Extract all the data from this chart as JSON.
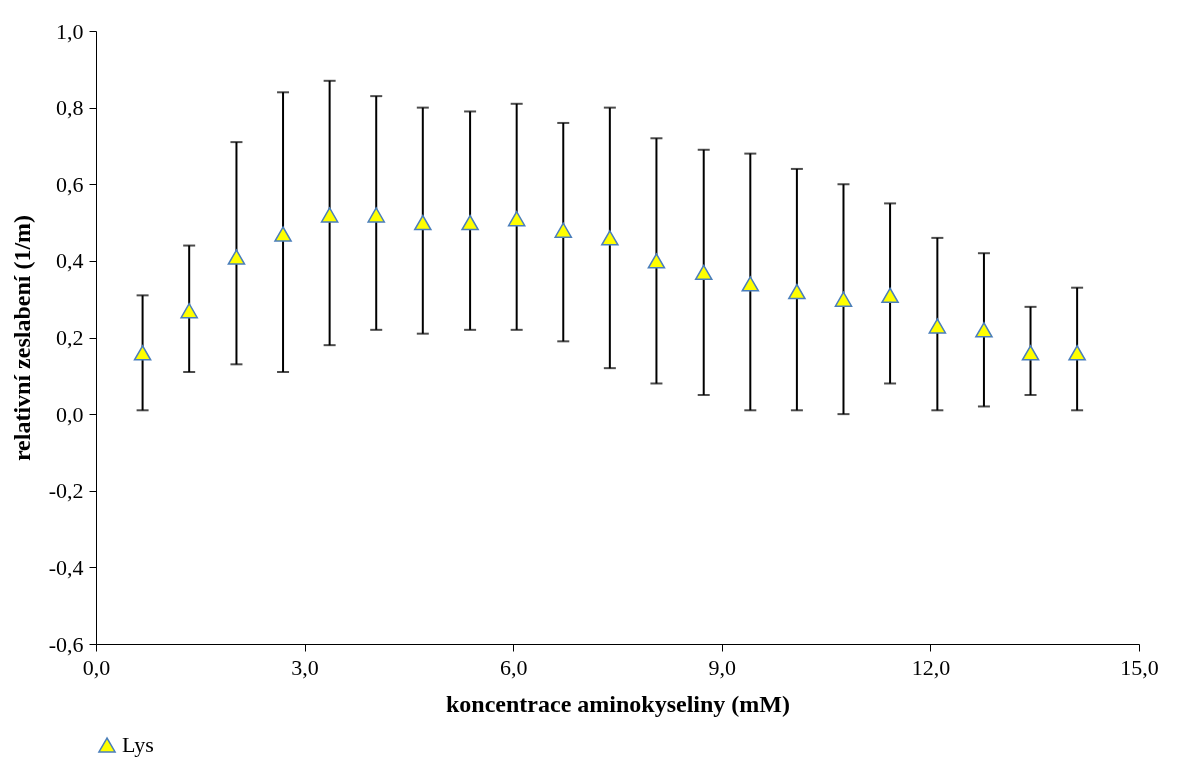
{
  "chart_data": {
    "type": "scatter",
    "xlabel": "koncentrace aminokyseliny (mM)",
    "ylabel": "relativní zeslabení (1/m)",
    "x": [
      0.67,
      1.34,
      2.02,
      2.69,
      3.36,
      4.03,
      4.7,
      5.38,
      6.05,
      6.72,
      7.39,
      8.06,
      8.74,
      9.41,
      10.08,
      10.75,
      11.42,
      12.1,
      12.77,
      13.44,
      14.11
    ],
    "series": [
      {
        "name": "Lys",
        "color": "#ffff00",
        "values": [
          0.16,
          0.27,
          0.41,
          0.47,
          0.52,
          0.52,
          0.5,
          0.5,
          0.51,
          0.48,
          0.46,
          0.4,
          0.37,
          0.34,
          0.32,
          0.3,
          0.31,
          0.23,
          0.22,
          0.16,
          0.16
        ],
        "errors": [
          [
            0.01,
            0.31
          ],
          [
            0.11,
            0.44
          ],
          [
            0.13,
            0.71
          ],
          [
            0.11,
            0.84
          ],
          [
            0.18,
            0.87
          ],
          [
            0.22,
            0.83
          ],
          [
            0.21,
            0.8
          ],
          [
            0.22,
            0.79
          ],
          [
            0.22,
            0.81
          ],
          [
            0.19,
            0.76
          ],
          [
            0.12,
            0.8
          ],
          [
            0.08,
            0.72
          ],
          [
            0.05,
            0.69
          ],
          [
            0.01,
            0.68
          ],
          [
            0.01,
            0.64
          ],
          [
            0.0,
            0.6
          ],
          [
            0.08,
            0.55
          ],
          [
            0.01,
            0.46
          ],
          [
            0.02,
            0.42
          ],
          [
            0.05,
            0.28
          ],
          [
            0.01,
            0.33
          ]
        ]
      }
    ],
    "marker": "triangle",
    "legend": "bottom",
    "grid": false,
    "xlim": [
      0,
      15
    ],
    "xticks": [
      {
        "value": 0,
        "label": "0,0"
      },
      {
        "value": 3,
        "label": "3,0"
      },
      {
        "value": 6,
        "label": "6,0"
      },
      {
        "value": 9,
        "label": "9,0"
      },
      {
        "value": 12,
        "label": "12,0"
      },
      {
        "value": 15,
        "label": "15,0"
      }
    ],
    "ylim": [
      -0.6,
      1.0
    ],
    "yticks": [
      {
        "value": -0.6,
        "label": "-0,6"
      },
      {
        "value": -0.4,
        "label": "-0,4"
      },
      {
        "value": -0.2,
        "label": "-0,2"
      },
      {
        "value": 0,
        "label": "0,0"
      },
      {
        "value": 0.2,
        "label": "0,2"
      },
      {
        "value": 0.4,
        "label": "0,4"
      },
      {
        "value": 0.6,
        "label": "0,6"
      },
      {
        "value": 0.8,
        "label": "0,8"
      },
      {
        "value": 1.0,
        "label": "1,0"
      }
    ]
  }
}
